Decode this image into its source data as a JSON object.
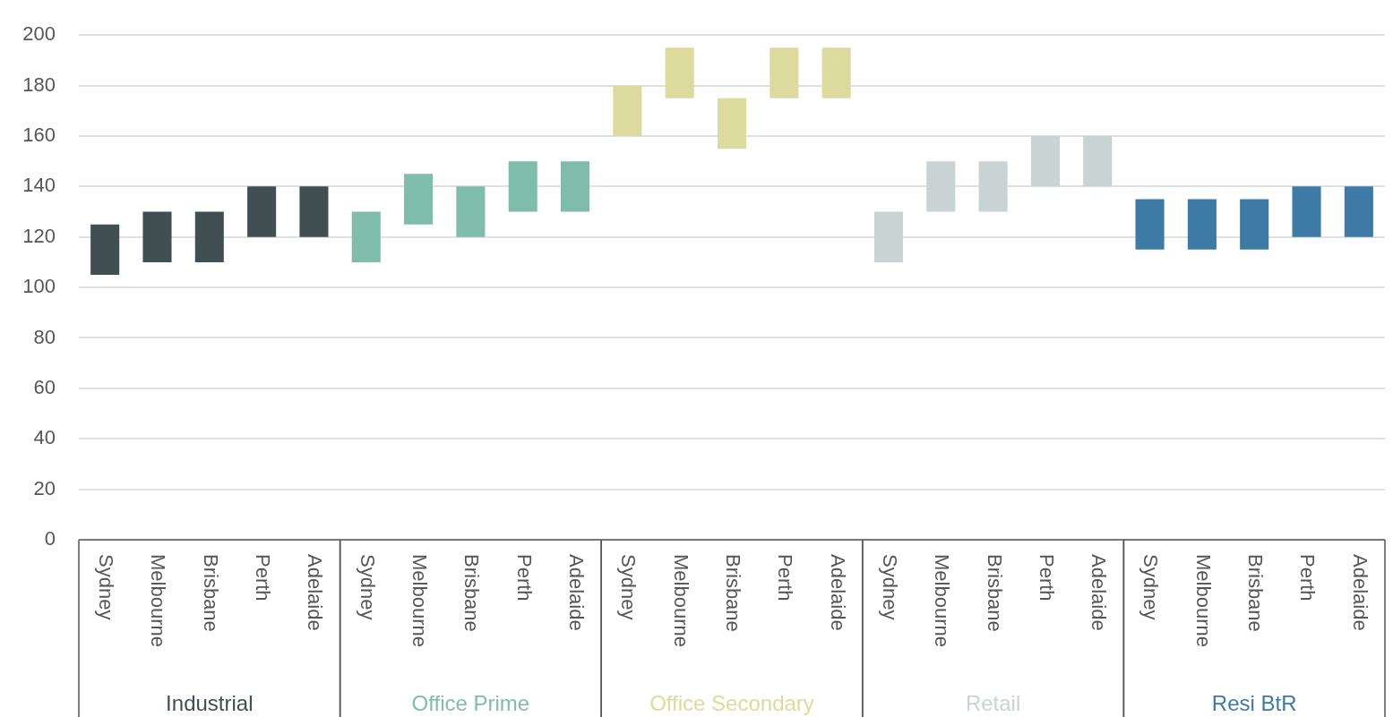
{
  "chart_data": {
    "type": "bar",
    "categories": [
      "Sydney",
      "Melbourne",
      "Brisbane",
      "Perth",
      "Adelaide",
      "Sydney",
      "Melbourne",
      "Brisbane",
      "Perth",
      "Adelaide",
      "Sydney",
      "Melbourne",
      "Brisbane",
      "Perth",
      "Adelaide",
      "Sydney",
      "Melbourne",
      "Brisbane",
      "Perth",
      "Adelaide",
      "Sydney",
      "Melbourne",
      "Brisbane",
      "Perth",
      "Adelaide"
    ],
    "series": [
      {
        "name": "Industrial",
        "color": "#414f53",
        "base": [
          105,
          110,
          110,
          120,
          120,
          null,
          null,
          null,
          null,
          null,
          null,
          null,
          null,
          null,
          null,
          null,
          null,
          null,
          null,
          null,
          null,
          null,
          null,
          null,
          null
        ],
        "values": [
          20,
          20,
          20,
          20,
          20,
          null,
          null,
          null,
          null,
          null,
          null,
          null,
          null,
          null,
          null,
          null,
          null,
          null,
          null,
          null,
          null,
          null,
          null,
          null,
          null
        ]
      },
      {
        "name": "Office Prime",
        "color": "#80bcaa",
        "base": [
          null,
          null,
          null,
          null,
          null,
          110,
          125,
          120,
          130,
          130,
          null,
          null,
          null,
          null,
          null,
          null,
          null,
          null,
          null,
          null,
          null,
          null,
          null,
          null,
          null
        ],
        "values": [
          null,
          null,
          null,
          null,
          null,
          20,
          20,
          20,
          20,
          20,
          null,
          null,
          null,
          null,
          null,
          null,
          null,
          null,
          null,
          null,
          null,
          null,
          null,
          null,
          null
        ]
      },
      {
        "name": "Office Secondary",
        "color": "#dcdb9d",
        "base": [
          null,
          null,
          null,
          null,
          null,
          null,
          null,
          null,
          null,
          null,
          160,
          175,
          155,
          175,
          175,
          null,
          null,
          null,
          null,
          null,
          null,
          null,
          null,
          null,
          null
        ],
        "values": [
          null,
          null,
          null,
          null,
          null,
          null,
          null,
          null,
          null,
          null,
          20,
          20,
          20,
          20,
          20,
          null,
          null,
          null,
          null,
          null,
          null,
          null,
          null,
          null,
          null
        ]
      },
      {
        "name": "Retail",
        "color": "#c9d3d4",
        "base": [
          null,
          null,
          null,
          null,
          null,
          null,
          null,
          null,
          null,
          null,
          null,
          null,
          null,
          null,
          null,
          110,
          130,
          130,
          140,
          140,
          null,
          null,
          null,
          null,
          null
        ],
        "values": [
          null,
          null,
          null,
          null,
          null,
          null,
          null,
          null,
          null,
          null,
          null,
          null,
          null,
          null,
          null,
          20,
          20,
          20,
          20,
          20,
          null,
          null,
          null,
          null,
          null
        ]
      },
      {
        "name": "Resi BtR",
        "color": "#3d7aa5",
        "base": [
          null,
          null,
          null,
          null,
          null,
          null,
          null,
          null,
          null,
          null,
          null,
          null,
          null,
          null,
          null,
          null,
          null,
          null,
          null,
          null,
          115,
          115,
          115,
          120,
          120
        ],
        "values": [
          null,
          null,
          null,
          null,
          null,
          null,
          null,
          null,
          null,
          null,
          null,
          null,
          null,
          null,
          null,
          null,
          null,
          null,
          null,
          null,
          20,
          20,
          20,
          20,
          20
        ]
      }
    ],
    "ylim": [
      0,
      200
    ],
    "yticks": [
      0,
      20,
      40,
      60,
      80,
      100,
      120,
      140,
      160,
      180,
      200
    ],
    "grid": "y",
    "legend": false
  }
}
